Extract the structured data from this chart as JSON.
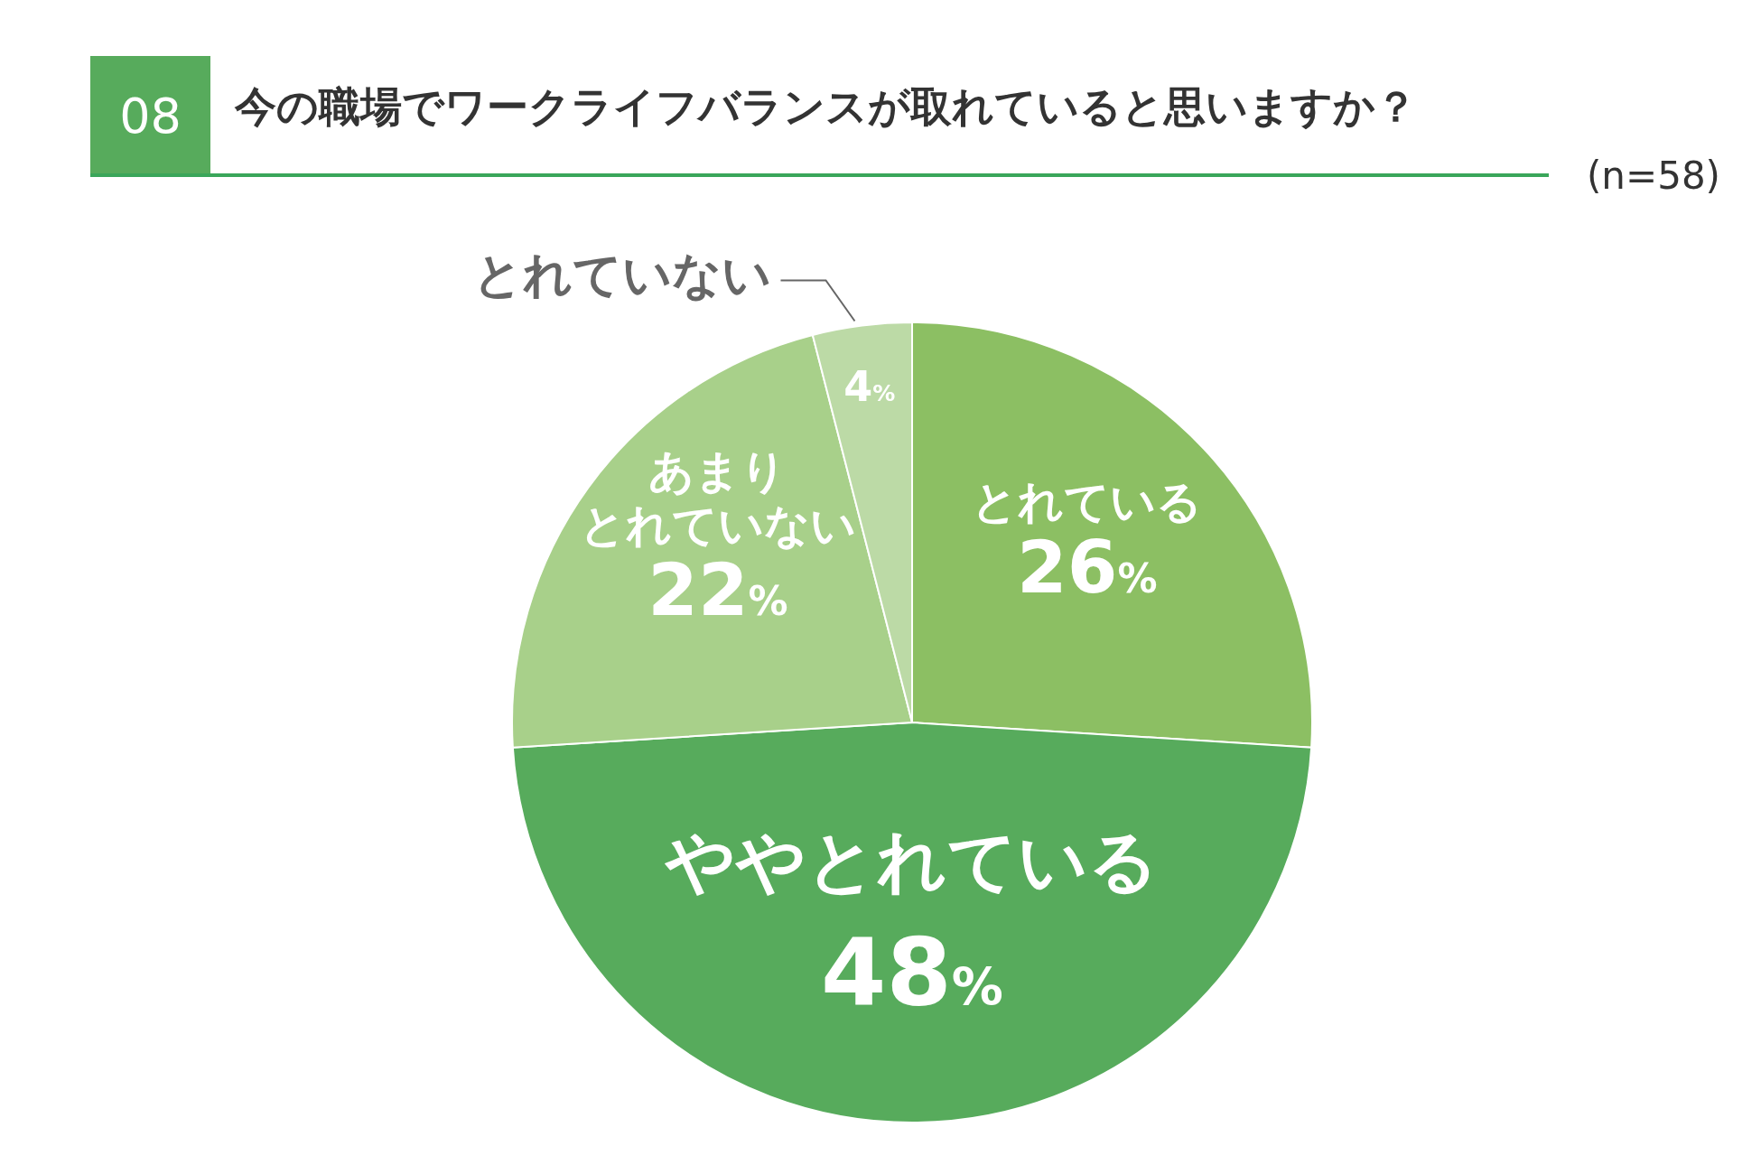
{
  "chart_data": {
    "type": "pie",
    "title": "今の職場でワークライフバランスが取れていると思いますか？",
    "annotations": [
      "08",
      "(n=58)"
    ],
    "categories": [
      "とれている",
      "ややとれている",
      "あまりとれていない",
      "とれていない"
    ],
    "values": [
      26,
      48,
      22,
      4
    ],
    "colors": [
      "#8cbf63",
      "#57ab5c",
      "#a8d08a",
      "#bcdaa6"
    ],
    "value_labels": [
      "26%",
      "48%",
      "22%",
      "4%"
    ],
    "legend": false
  }
}
